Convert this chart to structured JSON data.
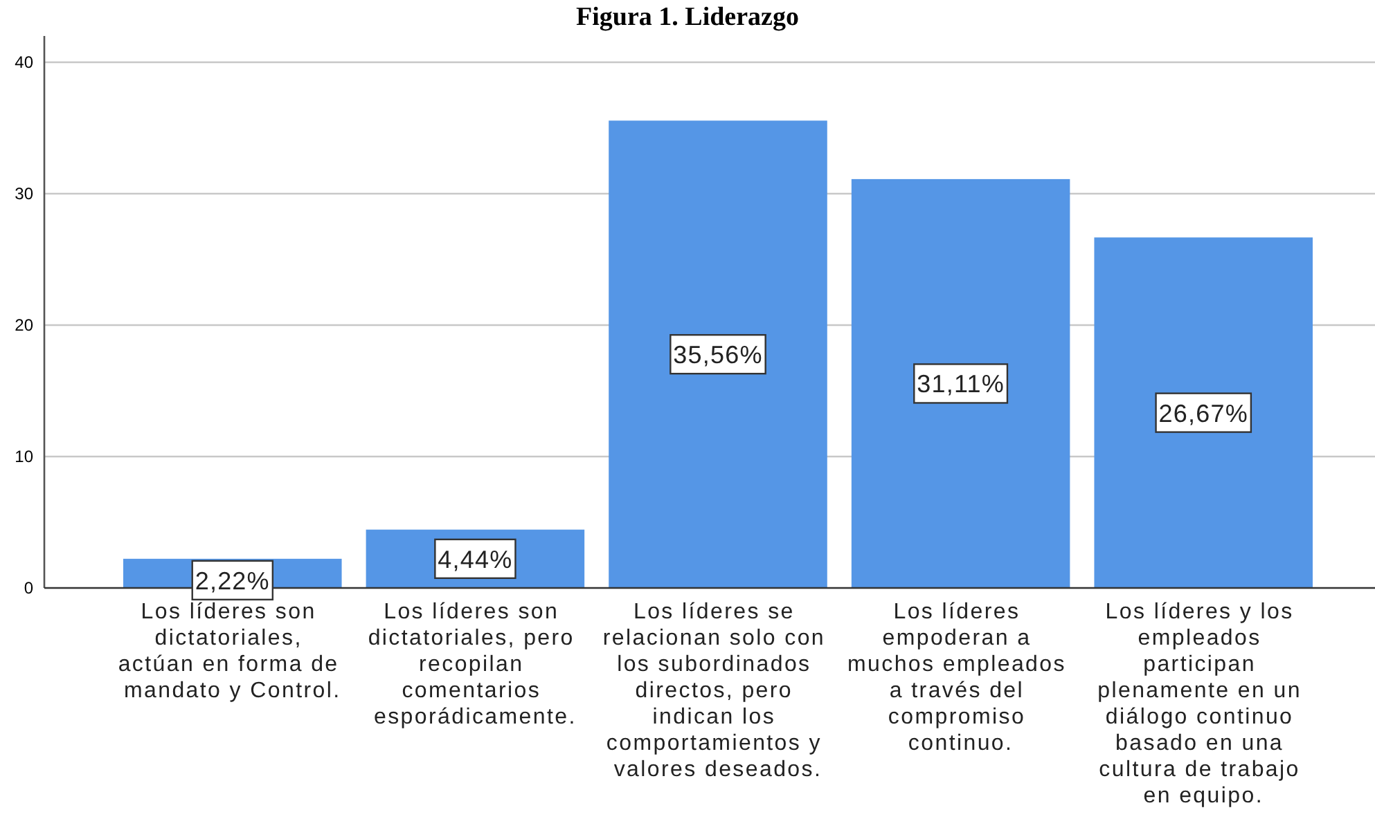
{
  "chart_data": {
    "type": "bar",
    "title": "Figura 1. Liderazgo",
    "categories": [
      "Los líderes son dictatoriales, actúan en forma de mandato y Control.",
      "Los líderes son dictatoriales, pero recopilan comentarios esporádicamente.",
      "Los líderes se relacionan solo con los subordinados directos, pero indican los comportamientos y valores deseados.",
      "Los líderes empoderan a muchos empleados a través del compromiso continuo.",
      "Los líderes y los empleados participan plenamente en un diálogo continuo basado en una cultura de trabajo en equipo."
    ],
    "values": [
      2.22,
      4.44,
      35.56,
      31.11,
      26.67
    ],
    "value_labels": [
      "2,22%",
      "4,44%",
      "35,56%",
      "31,11%",
      "26,67%"
    ],
    "color": "#5596e6",
    "ylim": [
      0,
      42
    ],
    "yticks": [
      0,
      10,
      20,
      30,
      40
    ],
    "grid": "y"
  }
}
